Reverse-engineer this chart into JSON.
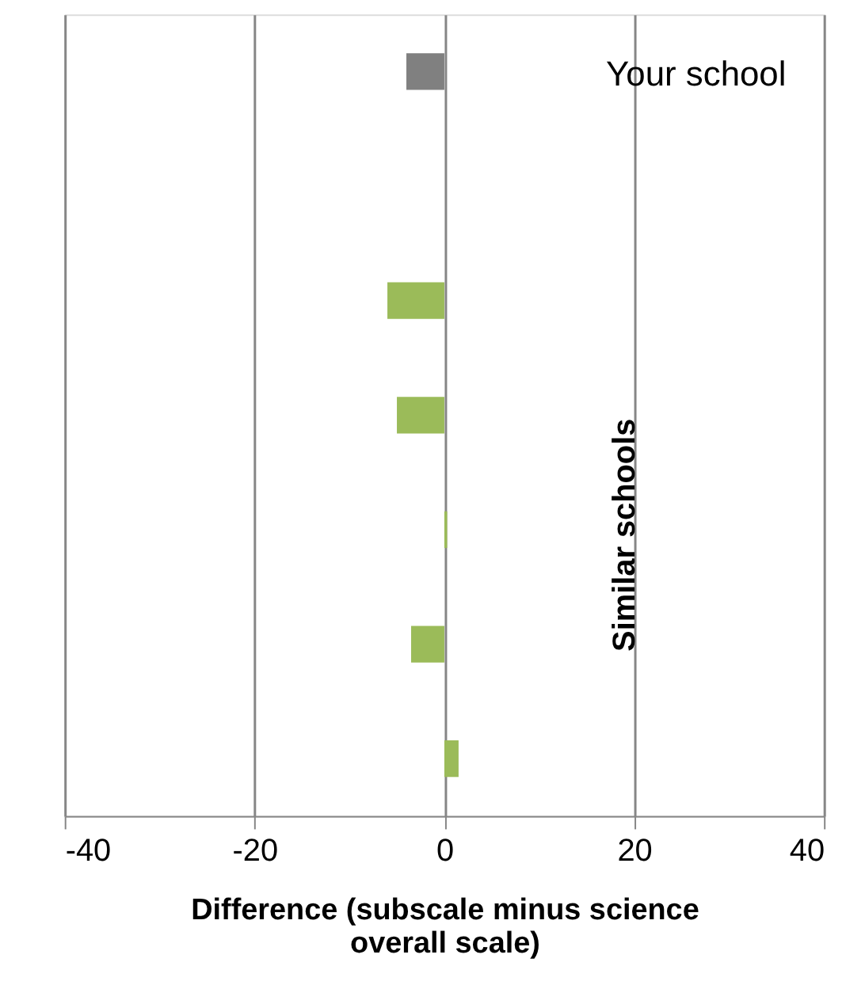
{
  "chart_data": {
    "type": "bar",
    "orientation": "horizontal",
    "categories": [
      null,
      null,
      null,
      null,
      null,
      null,
      null
    ],
    "values": [
      -4,
      null,
      -6,
      -5,
      0.3,
      -3.5,
      1.5
    ],
    "colors": [
      "#808080",
      "#9bbb59",
      "#9bbb59",
      "#9bbb59",
      "#9bbb59",
      "#9bbb59",
      "#9bbb59"
    ],
    "xlim": [
      -40,
      40
    ],
    "xticks": [
      -40,
      -20,
      0,
      20,
      40
    ],
    "grid": "x",
    "tick_labels": "x",
    "xlabel": "Difference (subscale minus science overall scale)",
    "annotations": [
      "Your school",
      "Similar schools"
    ]
  }
}
